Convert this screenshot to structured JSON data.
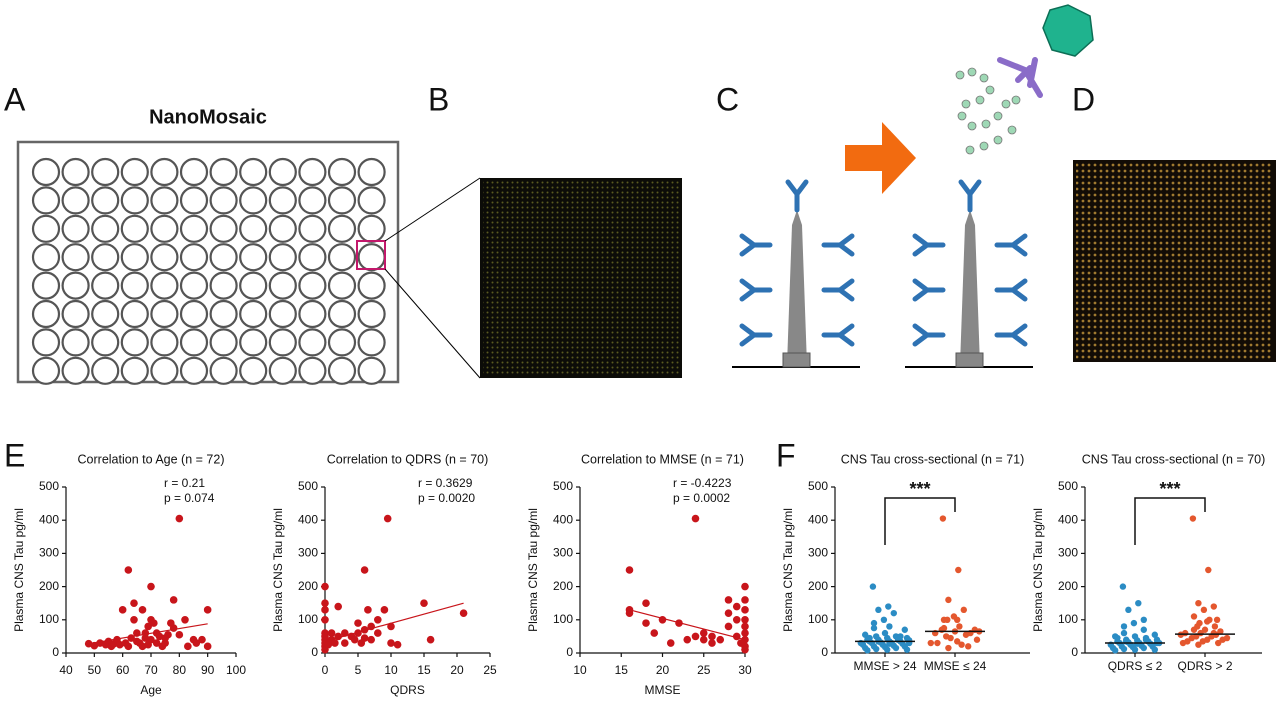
{
  "panel_labels": [
    "A",
    "B",
    "C",
    "D",
    "E",
    "F"
  ],
  "plate_title": "NanoMosaic",
  "chart_data": [
    {
      "type": "scatter",
      "title": "Correlation to Age (n = 72)",
      "annotations": [
        "r = 0.21",
        "p = 0.074"
      ],
      "x_label": "Age",
      "y_label": "Plasma CNS Tau pg/ml",
      "color": "#c8151b",
      "xlim": [
        40,
        100
      ],
      "xticks": [
        40,
        50,
        60,
        70,
        80,
        90,
        100
      ],
      "ylim": [
        0,
        500
      ],
      "yticks": [
        0,
        100,
        200,
        300,
        400,
        500
      ],
      "x": [
        48,
        50,
        52,
        54,
        55,
        56,
        57,
        58,
        59,
        60,
        61,
        62,
        62,
        63,
        64,
        64,
        65,
        65,
        66,
        67,
        67,
        68,
        68,
        69,
        69,
        70,
        70,
        70,
        71,
        72,
        72,
        73,
        74,
        75,
        76,
        78,
        78,
        80,
        80,
        82,
        83,
        85,
        86,
        88,
        90,
        90,
        77,
        75
      ],
      "values": [
        28,
        22,
        30,
        25,
        35,
        20,
        28,
        40,
        25,
        130,
        30,
        250,
        20,
        45,
        100,
        150,
        35,
        60,
        30,
        20,
        130,
        45,
        60,
        25,
        80,
        200,
        40,
        100,
        90,
        30,
        60,
        50,
        20,
        30,
        55,
        75,
        160,
        405,
        55,
        100,
        20,
        40,
        30,
        40,
        130,
        20,
        90,
        45
      ],
      "fit": {
        "x": [
          48,
          90
        ],
        "y": [
          28,
          88
        ]
      }
    },
    {
      "type": "scatter",
      "title": "Correlation to QDRS (n = 70)",
      "annotations": [
        "r = 0.3629",
        "p = 0.0020"
      ],
      "x_label": "QDRS",
      "y_label": "Plasma CNS Tau pg/ml",
      "color": "#c8151b",
      "xlim": [
        0,
        25
      ],
      "xticks": [
        0,
        5,
        10,
        15,
        20,
        25
      ],
      "ylim": [
        0,
        500
      ],
      "yticks": [
        0,
        100,
        200,
        300,
        400,
        500
      ],
      "x": [
        0,
        0,
        0,
        0,
        0,
        0,
        0,
        0,
        0,
        0,
        0.5,
        1,
        1,
        1.5,
        2,
        2,
        3,
        3,
        4,
        4.5,
        5,
        5,
        5.5,
        6,
        6,
        6,
        6.5,
        7,
        7,
        8,
        8,
        9,
        9.5,
        10,
        10,
        11,
        15,
        16,
        21
      ],
      "values": [
        20,
        40,
        60,
        100,
        130,
        150,
        200,
        10,
        30,
        50,
        25,
        40,
        60,
        30,
        50,
        140,
        30,
        60,
        50,
        40,
        60,
        90,
        30,
        250,
        45,
        70,
        130,
        80,
        40,
        60,
        100,
        130,
        405,
        30,
        80,
        25,
        150,
        40,
        120
      ],
      "fit": {
        "x": [
          0,
          21
        ],
        "y": [
          35,
          150
        ]
      }
    },
    {
      "type": "scatter",
      "title": "Correlation to MMSE (n = 71)",
      "annotations": [
        "r = -0.4223",
        "p = 0.0002"
      ],
      "x_label": "MMSE",
      "y_label": "Plasma CNS Tau pg/ml",
      "color": "#c8151b",
      "xlim": [
        10,
        30
      ],
      "xticks": [
        10,
        15,
        20,
        25,
        30
      ],
      "ylim": [
        0,
        500
      ],
      "yticks": [
        0,
        100,
        200,
        300,
        400,
        500
      ],
      "x": [
        16,
        16,
        16,
        18,
        18,
        19,
        20,
        21,
        22,
        23,
        24,
        24,
        25,
        25,
        26,
        26,
        27,
        28,
        28,
        28,
        29,
        29,
        29,
        30,
        30,
        30,
        30,
        30,
        30,
        30,
        30,
        30,
        29.5
      ],
      "values": [
        250,
        130,
        120,
        150,
        90,
        60,
        100,
        30,
        90,
        40,
        405,
        50,
        60,
        40,
        50,
        30,
        40,
        80,
        160,
        120,
        50,
        100,
        140,
        200,
        160,
        100,
        80,
        60,
        40,
        20,
        10,
        130,
        30
      ],
      "fit": {
        "x": [
          16,
          30
        ],
        "y": [
          130,
          40
        ]
      }
    },
    {
      "type": "strip",
      "title": "CNS Tau cross-sectional (n = 71)",
      "y_label": "Plasma CNS Tau pg/ml",
      "categories": [
        "MMSE > 24",
        "MMSE ≤ 24"
      ],
      "colors": [
        "#2b8cc4",
        "#e4572e"
      ],
      "significance": "***",
      "ylim": [
        0,
        500
      ],
      "yticks": [
        0,
        100,
        200,
        300,
        400,
        500
      ],
      "medians": [
        35,
        65
      ],
      "values": [
        [
          200,
          140,
          130,
          120,
          100,
          90,
          80,
          75,
          70,
          60,
          55,
          50,
          50,
          45,
          45,
          40,
          40,
          40,
          38,
          35,
          35,
          35,
          32,
          30,
          30,
          30,
          28,
          25,
          25,
          22,
          20,
          20,
          18,
          15,
          15,
          12,
          10,
          10,
          8,
          40,
          35,
          30,
          28,
          45,
          50
        ],
        [
          405,
          250,
          160,
          130,
          110,
          100,
          80,
          75,
          70,
          65,
          60,
          55,
          50,
          40,
          35,
          30,
          20,
          15,
          65,
          100,
          100,
          60,
          45,
          30,
          25,
          70
        ]
      ]
    },
    {
      "type": "strip",
      "title": "CNS Tau cross-sectional (n = 70)",
      "y_label": "Plasma CNS Tau pg/ml",
      "categories": [
        "QDRS ≤ 2",
        "QDRS > 2"
      ],
      "colors": [
        "#2b8cc4",
        "#e4572e"
      ],
      "significance": "***",
      "ylim": [
        0,
        500
      ],
      "yticks": [
        0,
        100,
        200,
        300,
        400,
        500
      ],
      "medians": [
        30,
        57
      ],
      "values": [
        [
          200,
          150,
          130,
          100,
          90,
          80,
          70,
          60,
          55,
          50,
          50,
          45,
          40,
          40,
          38,
          35,
          35,
          32,
          30,
          30,
          30,
          28,
          25,
          25,
          22,
          20,
          20,
          18,
          15,
          15,
          12,
          10,
          10,
          8,
          40,
          35,
          30,
          28,
          45
        ],
        [
          405,
          250,
          150,
          140,
          130,
          110,
          100,
          90,
          80,
          70,
          60,
          55,
          50,
          45,
          40,
          35,
          30,
          25,
          100,
          95,
          80,
          65,
          60,
          55,
          50,
          45,
          40,
          35,
          30,
          60,
          70
        ]
      ]
    }
  ]
}
